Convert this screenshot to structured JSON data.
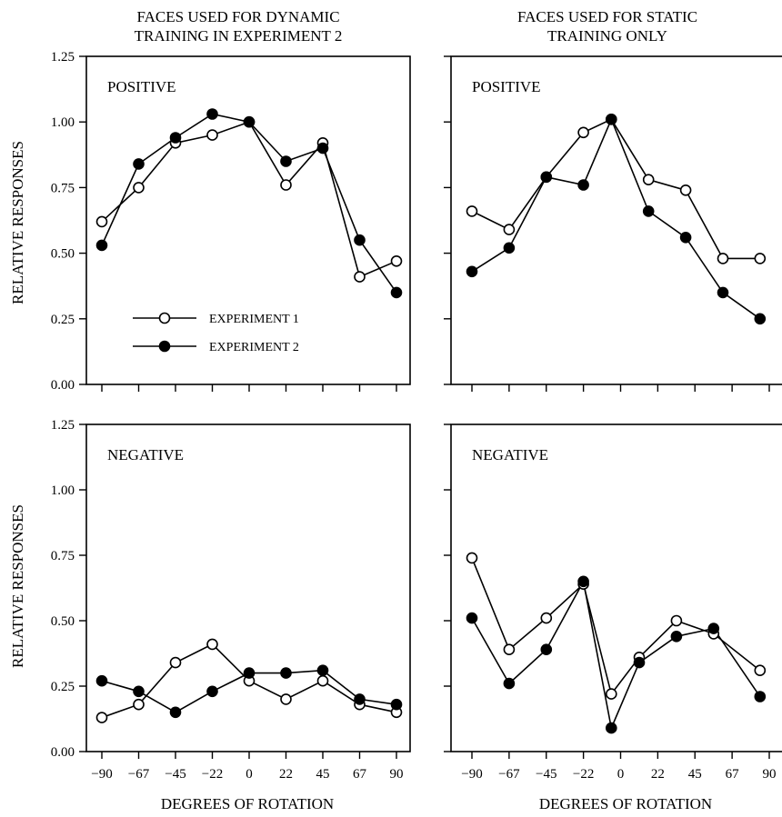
{
  "column_titles": [
    [
      "FACES USED FOR DYNAMIC",
      "TRAINING IN EXPERIMENT 2"
    ],
    [
      "FACES USED FOR STATIC",
      "TRAINING ONLY"
    ]
  ],
  "y_axis_title": "RELATIVE RESPONSES",
  "x_axis_title": "DEGREES OF ROTATION",
  "legend": {
    "items": [
      {
        "label": "EXPERIMENT 1",
        "marker": "open-circle"
      },
      {
        "label": "EXPERIMENT 2",
        "marker": "filled-circle"
      }
    ]
  },
  "chart_data": [
    {
      "type": "line",
      "panel_label": "POSITIVE",
      "column": 0,
      "row": 0,
      "xlim": [
        -90,
        90
      ],
      "ylim": [
        0,
        1.25
      ],
      "x_tick_labels": [
        "",
        "",
        "",
        "",
        "",
        "",
        "",
        "",
        ""
      ],
      "y_tick_labels": [
        "0.00",
        "0.25",
        "0.50",
        "0.75",
        "1.00",
        "1.25"
      ],
      "x": [
        -90,
        -67.5,
        -45,
        -22.5,
        0,
        22.5,
        45,
        67.5,
        90
      ],
      "series": [
        {
          "name": "EXPERIMENT 1",
          "marker": "open",
          "values": [
            0.62,
            0.75,
            0.92,
            0.95,
            1.0,
            0.76,
            0.92,
            0.41,
            0.47
          ]
        },
        {
          "name": "EXPERIMENT 2",
          "marker": "filled",
          "values": [
            0.53,
            0.84,
            0.94,
            1.03,
            1.0,
            0.85,
            0.9,
            0.55,
            0.35
          ]
        }
      ]
    },
    {
      "type": "line",
      "panel_label": "POSITIVE",
      "column": 1,
      "row": 0,
      "xlim": [
        -90,
        90
      ],
      "ylim": [
        0,
        1.25
      ],
      "x_tick_labels": [
        "",
        "",
        "",
        "",
        "",
        "",
        "",
        "",
        ""
      ],
      "y_tick_labels": [
        "",
        "",
        "",
        "",
        "",
        ""
      ],
      "x": [
        -90,
        -67.5,
        -45,
        -22.5,
        -5.6,
        16.9,
        39.4,
        61.9,
        84.4
      ],
      "series": [
        {
          "name": "EXPERIMENT 1",
          "marker": "open",
          "values": [
            0.66,
            0.59,
            0.79,
            0.96,
            1.01,
            0.78,
            0.74,
            0.48,
            0.48
          ]
        },
        {
          "name": "EXPERIMENT 2",
          "marker": "filled",
          "values": [
            0.43,
            0.52,
            0.79,
            0.76,
            1.01,
            0.66,
            0.56,
            0.35,
            0.25
          ]
        }
      ]
    },
    {
      "type": "line",
      "panel_label": "NEGATIVE",
      "column": 0,
      "row": 1,
      "xlim": [
        -90,
        90
      ],
      "ylim": [
        0,
        1.25
      ],
      "x_tick_labels": [
        "−90",
        "−67",
        "−45",
        "−22",
        "0",
        "22",
        "45",
        "67",
        "90"
      ],
      "y_tick_labels": [
        "0.00",
        "0.25",
        "0.50",
        "0.75",
        "1.00",
        "1.25"
      ],
      "x": [
        -90,
        -67.5,
        -45,
        -22.5,
        0,
        22.5,
        45,
        67.5,
        90
      ],
      "series": [
        {
          "name": "EXPERIMENT 1",
          "marker": "open",
          "values": [
            0.13,
            0.18,
            0.34,
            0.41,
            0.27,
            0.2,
            0.27,
            0.18,
            0.15
          ]
        },
        {
          "name": "EXPERIMENT 2",
          "marker": "filled",
          "values": [
            0.27,
            0.23,
            0.15,
            0.23,
            0.3,
            0.3,
            0.31,
            0.2,
            0.18
          ]
        }
      ]
    },
    {
      "type": "line",
      "panel_label": "NEGATIVE",
      "column": 1,
      "row": 1,
      "xlim": [
        -90,
        90
      ],
      "ylim": [
        0,
        1.25
      ],
      "x_tick_labels": [
        "−90",
        "−67",
        "−45",
        "−22",
        "0",
        "22",
        "45",
        "67",
        "90"
      ],
      "y_tick_labels": [
        "",
        "",
        "",
        "",
        "",
        ""
      ],
      "x": [
        -90,
        -67.5,
        -45,
        -22.5,
        -5.6,
        11.3,
        33.8,
        56.3,
        84.4
      ],
      "series": [
        {
          "name": "EXPERIMENT 1",
          "marker": "open",
          "values": [
            0.74,
            0.39,
            0.51,
            0.64,
            0.22,
            0.36,
            0.5,
            0.45,
            0.31
          ]
        },
        {
          "name": "EXPERIMENT 2",
          "marker": "filled",
          "values": [
            0.51,
            0.26,
            0.39,
            0.65,
            0.09,
            0.34,
            0.44,
            0.47,
            0.21
          ]
        }
      ]
    }
  ]
}
